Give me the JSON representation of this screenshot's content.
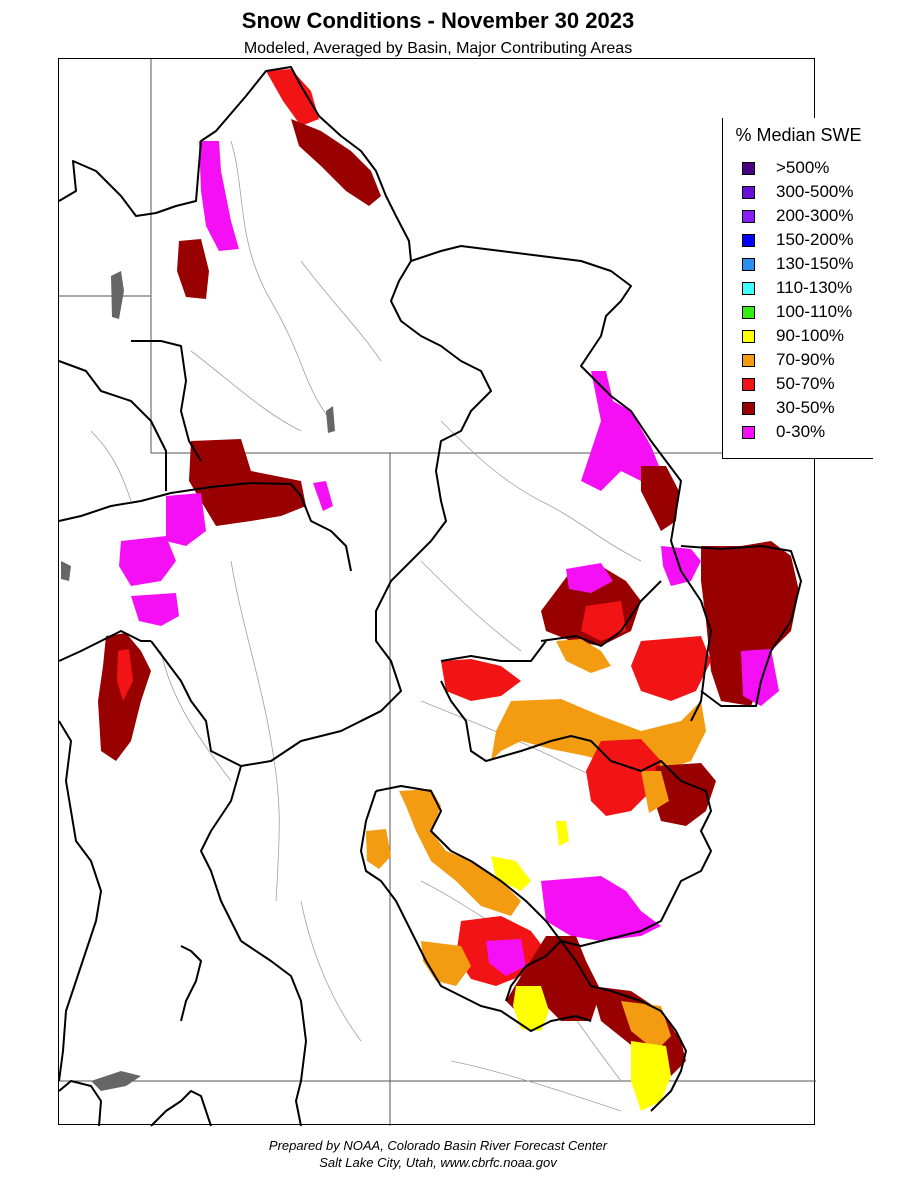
{
  "title": "Snow Conditions - November 30 2023",
  "subtitle": "Modeled, Averaged by Basin, Major Contributing Areas",
  "legend": {
    "title": "% Median SWE",
    "items": [
      {
        "label": ">500%",
        "color": "#4b0082"
      },
      {
        "label": "300-500%",
        "color": "#6a0dd9"
      },
      {
        "label": "200-300%",
        "color": "#8a1cf5"
      },
      {
        "label": "150-200%",
        "color": "#0000ff"
      },
      {
        "label": "130-150%",
        "color": "#2a8ff0"
      },
      {
        "label": "110-130%",
        "color": "#40ffff"
      },
      {
        "label": "100-110%",
        "color": "#33ee11"
      },
      {
        "label": "90-100%",
        "color": "#ffff00"
      },
      {
        "label": "70-90%",
        "color": "#f39c12"
      },
      {
        "label": "50-70%",
        "color": "#f21414"
      },
      {
        "label": "30-50%",
        "color": "#990000"
      },
      {
        "label": "0-30%",
        "color": "#f50ff5"
      }
    ]
  },
  "credit": {
    "line1": "Prepared by NOAA, Colorado Basin River Forecast Center",
    "line2": "Salt Lake City, Utah, www.cbrfc.noaa.gov"
  },
  "colors": {
    "basin_border": "#000000",
    "state_line": "#555555",
    "rivers": "#9a9a9a",
    "lakes": "#666666"
  }
}
